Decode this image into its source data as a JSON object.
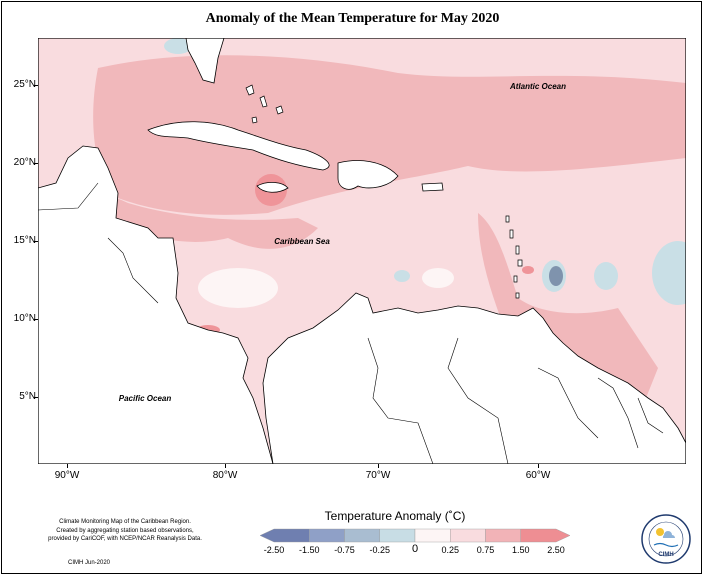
{
  "title": "Anomaly of the Mean Temperature for May 2020",
  "map": {
    "labels": {
      "atlantic": "Atlantic Ocean",
      "caribbean": "Caribbean Sea",
      "pacific": "Pacific Ocean"
    },
    "lat_ticks": [
      "25°N",
      "20°N",
      "15°N",
      "10°N",
      "5°N"
    ],
    "lon_ticks": [
      "90°W",
      "80°W",
      "70°W",
      "60°W"
    ]
  },
  "legend": {
    "title": "Temperature Anomaly (˚C)",
    "labels": [
      "-2.50",
      "-1.50",
      "-0.75",
      "-0.25",
      "0",
      "0.25",
      "0.75",
      "1.50",
      "2.50"
    ],
    "colors": [
      "#6f7fb0",
      "#8fa0c7",
      "#a9bdd1",
      "#c8dde5",
      "#fdf5f5",
      "#f9dcdf",
      "#f2b3b7",
      "#ee8e93"
    ]
  },
  "credit": {
    "line1": "Climate Monitoring Map of the Caribbean Region.",
    "line2": "Created by aggregating station based observations,",
    "line3": "provided by CariCOF, with NCEP/NCAR Reanalysis Data.",
    "date": "CIMH Jun-2020"
  },
  "logo": {
    "text": "CIMH",
    "icon": "cimh-sun-cloud-logo"
  },
  "colors": {
    "light_pink": "#f9dcdf",
    "mid_pink": "#f1b8bb",
    "hot_spot": "#ef9499",
    "light_blue": "#c9dfe6",
    "dark_blue": "#7f93ad",
    "land": "#ffffff"
  }
}
